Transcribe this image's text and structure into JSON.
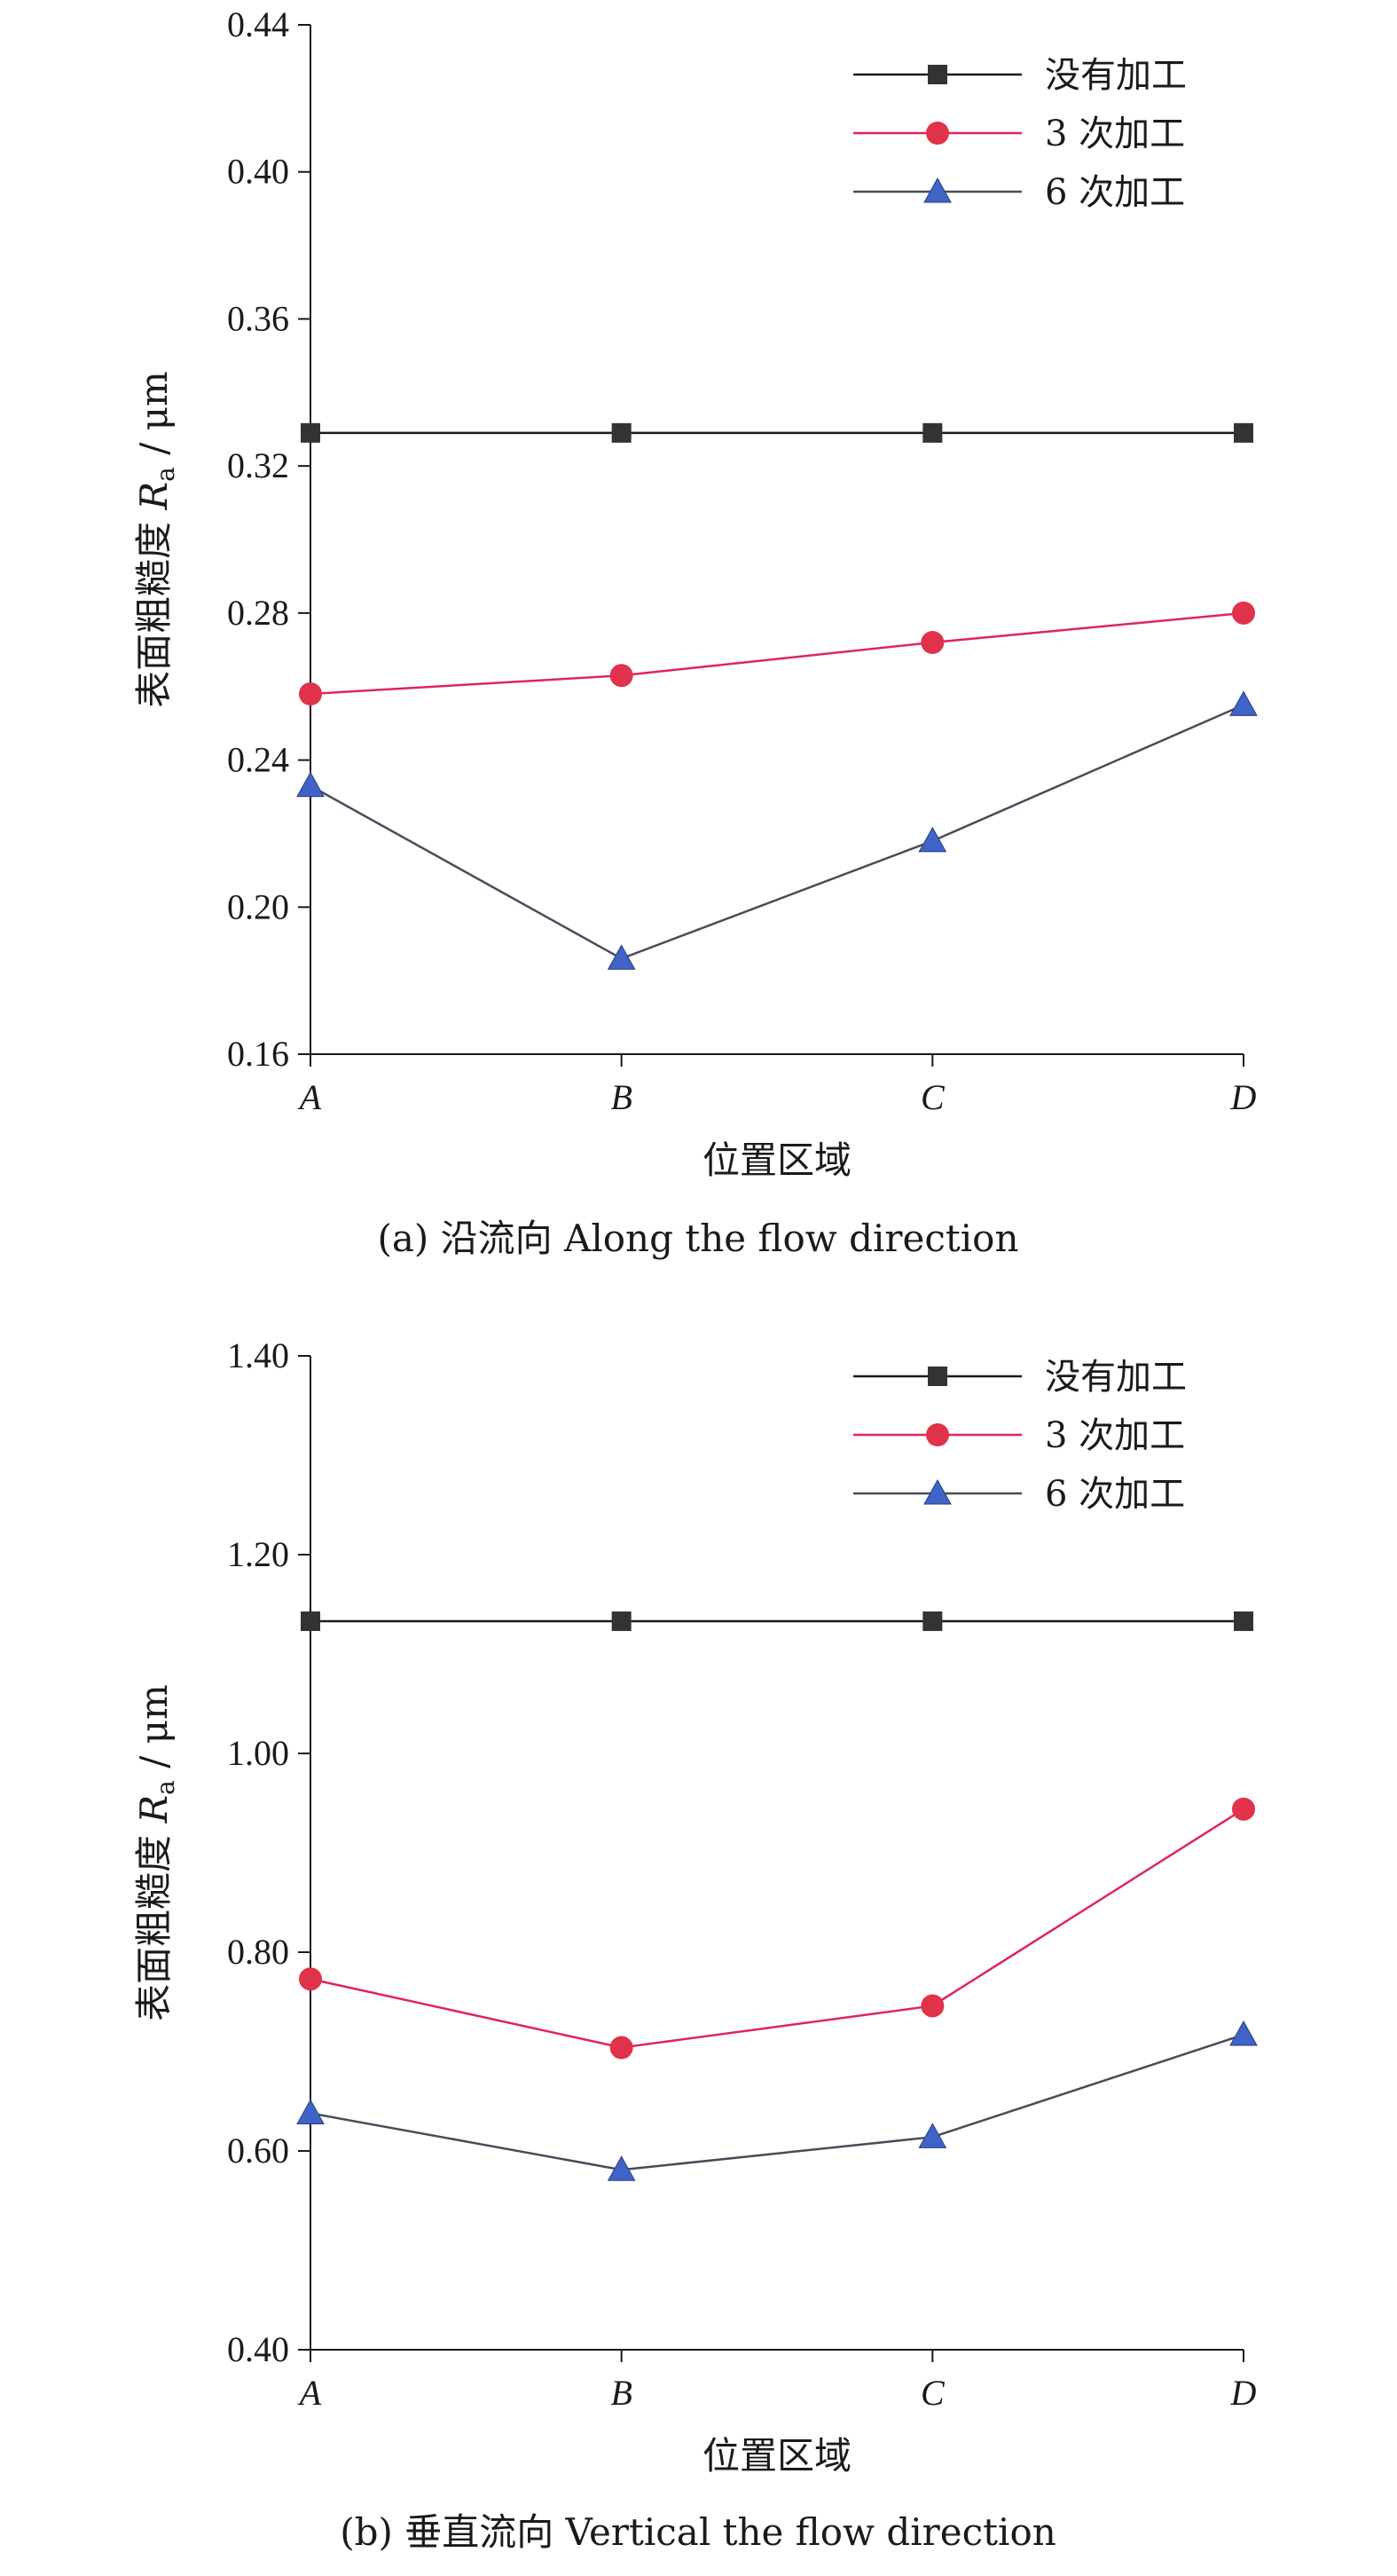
{
  "chart_data": [
    {
      "type": "line",
      "categories": [
        "A",
        "B",
        "C",
        "D"
      ],
      "ylabel_main": "表面粗糙度 ",
      "ylabel_symbol": "R",
      "ylabel_sub": "a",
      "ylabel_unit": " / μm",
      "xlabel": "位置区域",
      "caption": "(a) 沿流向 Along the flow direction",
      "ylim": [
        0.16,
        0.44
      ],
      "yticks": [
        "0.16",
        "0.20",
        "0.24",
        "0.28",
        "0.32",
        "0.36",
        "0.40",
        "0.44"
      ],
      "legend_position": "top-right",
      "grid": false,
      "series": [
        {
          "name": "没有加工",
          "color": "#1a1a1a",
          "marker": "square",
          "marker_color": "#333333",
          "values": [
            0.329,
            0.329,
            0.329,
            0.329
          ]
        },
        {
          "name": "3 次加工",
          "color": "#e0245e",
          "marker": "circle",
          "marker_color": "#e0324a",
          "values": [
            0.258,
            0.263,
            0.272,
            0.28
          ]
        },
        {
          "name": "6 次加工",
          "color": "#4a4a5a",
          "marker": "triangle",
          "marker_color": "#3f63c6",
          "values": [
            0.233,
            0.186,
            0.218,
            0.255
          ]
        }
      ]
    },
    {
      "type": "line",
      "categories": [
        "A",
        "B",
        "C",
        "D"
      ],
      "ylabel_main": "表面粗糙度 ",
      "ylabel_symbol": "R",
      "ylabel_sub": "a",
      "ylabel_unit": " / μm",
      "xlabel": "位置区域",
      "caption": "(b) 垂直流向 Vertical the flow direction",
      "ylim": [
        0.4,
        1.4
      ],
      "yticks": [
        "0.40",
        "0.60",
        "0.80",
        "1.00",
        "1.20",
        "1.40"
      ],
      "legend_position": "top-right",
      "grid": false,
      "series": [
        {
          "name": "没有加工",
          "color": "#1a1a1a",
          "marker": "square",
          "marker_color": "#333333",
          "values": [
            1.133,
            1.133,
            1.133,
            1.133
          ]
        },
        {
          "name": "3 次加工",
          "color": "#e0245e",
          "marker": "circle",
          "marker_color": "#e0324a",
          "values": [
            0.773,
            0.704,
            0.746,
            0.944
          ]
        },
        {
          "name": "6 次加工",
          "color": "#4a4a5a",
          "marker": "triangle",
          "marker_color": "#3f63c6",
          "values": [
            0.638,
            0.581,
            0.614,
            0.717
          ]
        }
      ]
    }
  ]
}
